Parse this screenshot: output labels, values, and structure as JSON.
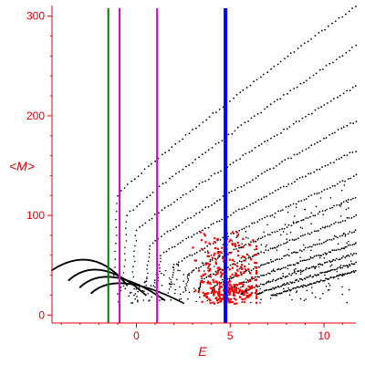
{
  "chart_data": {
    "type": "scatter",
    "title": "",
    "xlabel": "E",
    "ylabel": "<M>",
    "xlim": [
      -4.5,
      11.7
    ],
    "ylim": [
      -8,
      308
    ],
    "x_ticks": [
      0,
      5,
      10
    ],
    "y_ticks": [
      0,
      100,
      200,
      300
    ],
    "x_tick_labels": [
      "0",
      "5",
      "10"
    ],
    "y_tick_labels": [
      "0",
      "100",
      "200",
      "300"
    ],
    "grid": false,
    "legend": "none",
    "colors": {
      "axis": "#e8000b",
      "black_points": "#000000",
      "red_points": "#ff0000",
      "green_line": "#008000",
      "magenta_line": "#e000e0",
      "blue_line": "#0000ff"
    },
    "vertical_lines": [
      {
        "x": -1.5,
        "color": "green"
      },
      {
        "x": -0.9,
        "color": "magenta"
      },
      {
        "x": 1.1,
        "color": "magenta"
      },
      {
        "x": 4.75,
        "color": "blue"
      }
    ],
    "black_curves_note": "Dense black point bands fanning out from the lower left; each band rises roughly linearly with E.",
    "black_band_endpoints": [
      {
        "start": [
          -1.0,
          120
        ],
        "end": [
          11.7,
          310
        ]
      },
      {
        "start": [
          -0.5,
          100
        ],
        "end": [
          11.7,
          270
        ]
      },
      {
        "start": [
          0.0,
          85
        ],
        "end": [
          11.7,
          230
        ]
      },
      {
        "start": [
          0.7,
          70
        ],
        "end": [
          11.7,
          195
        ]
      },
      {
        "start": [
          1.3,
          60
        ],
        "end": [
          11.7,
          165
        ]
      },
      {
        "start": [
          2.0,
          50
        ],
        "end": [
          11.7,
          140
        ]
      },
      {
        "start": [
          2.8,
          42
        ],
        "end": [
          11.7,
          118
        ]
      },
      {
        "start": [
          3.5,
          36
        ],
        "end": [
          11.7,
          100
        ]
      },
      {
        "start": [
          4.2,
          30
        ],
        "end": [
          11.7,
          85
        ]
      },
      {
        "start": [
          5.0,
          27
        ],
        "end": [
          11.7,
          72
        ]
      },
      {
        "start": [
          5.8,
          24
        ],
        "end": [
          11.7,
          62
        ]
      },
      {
        "start": [
          6.6,
          22
        ],
        "end": [
          11.7,
          52
        ]
      },
      {
        "start": [
          7.4,
          20
        ],
        "end": [
          11.7,
          44
        ]
      }
    ],
    "left_arcs": [
      {
        "start": [
          -4.5,
          45
        ],
        "peak": [
          -2.3,
          60
        ],
        "end": [
          -0.5,
          30
        ]
      },
      {
        "start": [
          -3.6,
          35
        ],
        "peak": [
          -2.0,
          50
        ],
        "end": [
          0.5,
          20
        ]
      },
      {
        "start": [
          -3.0,
          28
        ],
        "peak": [
          -1.5,
          42
        ],
        "end": [
          1.5,
          15
        ]
      },
      {
        "start": [
          -2.4,
          22
        ],
        "peak": [
          -1.0,
          34
        ],
        "end": [
          2.5,
          12
        ]
      }
    ],
    "red_cluster": {
      "x_range": [
        3.0,
        6.4
      ],
      "y_range": [
        10,
        85
      ],
      "center": [
        4.9,
        25
      ]
    }
  }
}
